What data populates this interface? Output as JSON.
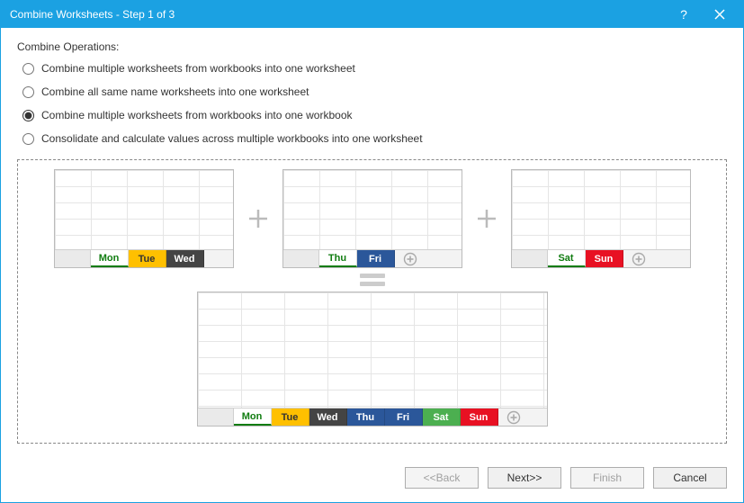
{
  "titlebar": {
    "title": "Combine Worksheets - Step 1 of 3"
  },
  "section_label": "Combine Operations:",
  "options": [
    {
      "label": "Combine multiple worksheets from workbooks into one worksheet",
      "selected": false
    },
    {
      "label": "Combine all same name worksheets into one worksheet",
      "selected": false
    },
    {
      "label": "Combine multiple worksheets from workbooks into one workbook",
      "selected": true
    },
    {
      "label": "Consolidate and calculate values across multiple workbooks into one worksheet",
      "selected": false
    }
  ],
  "diagram": {
    "workbooks": [
      {
        "tabs": [
          {
            "label": "Mon",
            "style": "tab-mon-active"
          },
          {
            "label": "Tue",
            "style": "tab-tue"
          },
          {
            "label": "Wed",
            "style": "tab-wed"
          }
        ],
        "show_add": false
      },
      {
        "tabs": [
          {
            "label": "Thu",
            "style": "tab-thu-active"
          },
          {
            "label": "Fri",
            "style": "tab-fri"
          }
        ],
        "show_add": true
      },
      {
        "tabs": [
          {
            "label": "Sat",
            "style": "tab-sat-active"
          },
          {
            "label": "Sun",
            "style": "tab-sun"
          }
        ],
        "show_add": true
      }
    ],
    "result_tabs": [
      {
        "label": "Mon",
        "style": "tab-mon-active"
      },
      {
        "label": "Tue",
        "style": "tab-tue"
      },
      {
        "label": "Wed",
        "style": "tab-wed"
      },
      {
        "label": "Thu",
        "style": "tab-fri"
      },
      {
        "label": "Fri",
        "style": "tab-fri"
      },
      {
        "label": "Sat",
        "style": "tab-sat"
      },
      {
        "label": "Sun",
        "style": "tab-sun"
      }
    ]
  },
  "footer": {
    "back": "<<Back",
    "next": "Next>>",
    "finish": "Finish",
    "cancel": "Cancel"
  },
  "colors": {
    "titlebar": "#1ba1e2",
    "tab_green": "#107c10",
    "tab_yellow": "#ffc000",
    "tab_dark": "#444444",
    "tab_blue": "#2b579a",
    "tab_red": "#e81123",
    "tab_green_fill": "#4caf50"
  }
}
